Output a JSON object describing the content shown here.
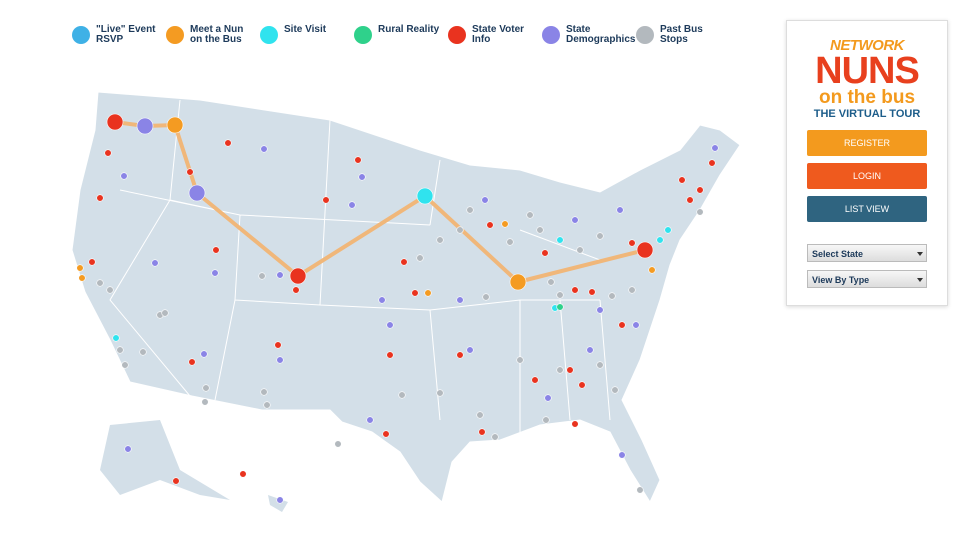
{
  "legend": [
    {
      "label": "\"Live\" Event RSVP",
      "color": "#3fb1e6"
    },
    {
      "label": "Meet a Nun on the Bus",
      "color": "#f49b22"
    },
    {
      "label": "Site Visit",
      "color": "#30e3ee"
    },
    {
      "label": "Rural Reality",
      "color": "#2fd18b"
    },
    {
      "label": "State Voter Info",
      "color": "#e9331f"
    },
    {
      "label": "State Demographics",
      "color": "#8a84e6"
    },
    {
      "label": "Past Bus Stops",
      "color": "#b3b9be"
    }
  ],
  "panel": {
    "logo": {
      "network": "NETWORK",
      "nuns": "NUNS",
      "bus": "on the bus",
      "tour": "THE VIRTUAL TOUR"
    },
    "buttons": [
      "REGISTER",
      "LOGIN",
      "LIST VIEW"
    ],
    "selects": [
      "Select State",
      "View By Type"
    ]
  }
}
